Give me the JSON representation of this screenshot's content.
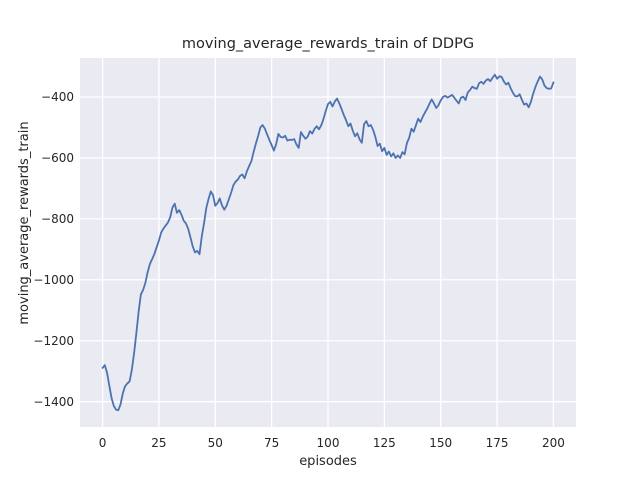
{
  "figure": {
    "background": "#ffffff",
    "axes_background": "#eaeaf2",
    "grid_color": "#ffffff",
    "text_color": "#262626"
  },
  "chart_data": {
    "type": "line",
    "title": "moving_average_rewards_train of DDPG",
    "xlabel": "episodes",
    "ylabel": "moving_average_rewards_train",
    "legend": null,
    "grid": true,
    "x_ticks": [
      0,
      25,
      50,
      75,
      100,
      125,
      150,
      175,
      200
    ],
    "y_ticks": [
      -400,
      -600,
      -800,
      -1000,
      -1200,
      -1400
    ],
    "xlim": [
      -10,
      210
    ],
    "ylim": [
      -1483,
      -272
    ],
    "line_color": "#4C72B0",
    "line_width": 1.8,
    "series": [
      {
        "name": "moving_average_rewards_train",
        "x_start": 0,
        "x_step": 1,
        "values": [
          -1289,
          -1280,
          -1305,
          -1347,
          -1388,
          -1414,
          -1426,
          -1428,
          -1408,
          -1372,
          -1349,
          -1340,
          -1333,
          -1295,
          -1240,
          -1175,
          -1105,
          -1048,
          -1033,
          -1010,
          -975,
          -948,
          -932,
          -915,
          -893,
          -871,
          -845,
          -832,
          -822,
          -812,
          -795,
          -763,
          -750,
          -780,
          -771,
          -786,
          -806,
          -815,
          -833,
          -861,
          -890,
          -910,
          -905,
          -916,
          -858,
          -815,
          -765,
          -735,
          -710,
          -722,
          -757,
          -748,
          -733,
          -756,
          -770,
          -757,
          -736,
          -715,
          -690,
          -678,
          -671,
          -659,
          -654,
          -667,
          -644,
          -627,
          -611,
          -581,
          -553,
          -528,
          -500,
          -492,
          -504,
          -523,
          -541,
          -558,
          -576,
          -555,
          -521,
          -531,
          -533,
          -527,
          -543,
          -540,
          -541,
          -538,
          -556,
          -567,
          -515,
          -527,
          -537,
          -530,
          -512,
          -520,
          -505,
          -496,
          -506,
          -493,
          -472,
          -446,
          -423,
          -416,
          -431,
          -415,
          -405,
          -421,
          -439,
          -459,
          -476,
          -496,
          -487,
          -511,
          -529,
          -519,
          -539,
          -550,
          -489,
          -479,
          -496,
          -492,
          -508,
          -531,
          -561,
          -553,
          -578,
          -567,
          -590,
          -579,
          -595,
          -585,
          -600,
          -592,
          -600,
          -581,
          -588,
          -551,
          -534,
          -504,
          -514,
          -493,
          -471,
          -482,
          -465,
          -451,
          -438,
          -422,
          -408,
          -421,
          -436,
          -427,
          -411,
          -400,
          -396,
          -402,
          -398,
          -393,
          -402,
          -412,
          -421,
          -402,
          -399,
          -410,
          -385,
          -377,
          -366,
          -371,
          -373,
          -355,
          -350,
          -357,
          -346,
          -341,
          -348,
          -337,
          -327,
          -340,
          -332,
          -334,
          -349,
          -359,
          -353,
          -371,
          -386,
          -397,
          -398,
          -391,
          -409,
          -425,
          -421,
          -434,
          -416,
          -389,
          -367,
          -349,
          -333,
          -342,
          -362,
          -371,
          -373,
          -372,
          -352
        ]
      }
    ]
  }
}
